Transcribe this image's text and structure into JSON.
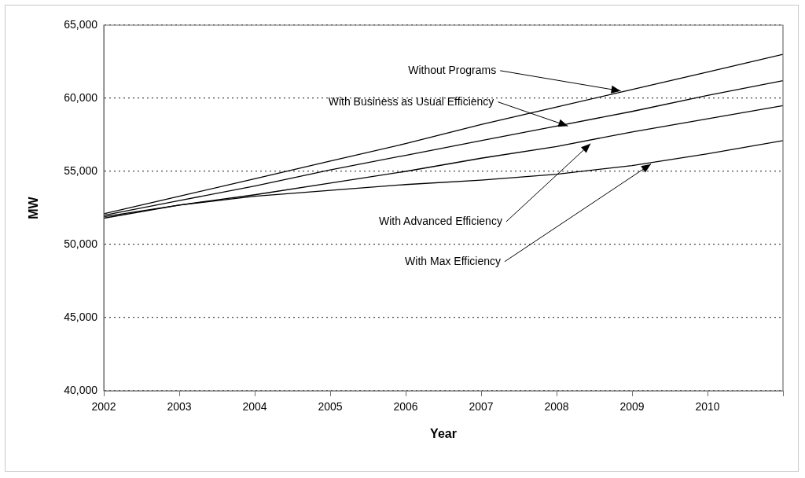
{
  "chart_data": {
    "type": "line",
    "xlabel": "Year",
    "ylabel": "MW",
    "x": [
      2002,
      2003,
      2004,
      2005,
      2006,
      2007,
      2008,
      2009,
      2010,
      2011
    ],
    "series": [
      {
        "color": "#000000",
        "values": [
          52100,
          53300,
          54500,
          55700,
          56900,
          58200,
          59400,
          60600,
          61800,
          63000
        ]
      },
      {
        "color": "#000000",
        "values": [
          52000,
          53000,
          54000,
          55100,
          56100,
          57100,
          58100,
          59100,
          60200,
          61200
        ]
      },
      {
        "color": "#000000",
        "values": [
          51900,
          52700,
          53400,
          54200,
          55000,
          55900,
          56700,
          57700,
          58600,
          59500
        ]
      },
      {
        "color": "#000000",
        "values": [
          51800,
          52700,
          53300,
          53700,
          54100,
          54400,
          54800,
          55400,
          56200,
          57100
        ]
      }
    ],
    "xlim": [
      2002,
      2011
    ],
    "xticks": [
      2002,
      2003,
      2004,
      2005,
      2006,
      2007,
      2008,
      2009,
      2010,
      {
        "value": 2011,
        "label": null
      }
    ],
    "ylim": [
      40000,
      65000
    ],
    "yticks": [
      {
        "value": 40000,
        "label": "40,000"
      },
      {
        "value": 45000,
        "label": "45,000"
      },
      {
        "value": 50000,
        "label": "50,000"
      },
      {
        "value": 55000,
        "label": "55,000"
      },
      {
        "value": 60000,
        "label": "60,000"
      },
      {
        "value": 65000,
        "label": "65,000"
      }
    ],
    "grid": "y",
    "legend": false,
    "marker": "none",
    "line_style": "solid",
    "annotations": [
      {
        "text": "Without Programs",
        "x": 2008.85,
        "y": 60500
      },
      {
        "text": "With Business as Usual Efficiency",
        "x": 2008.15,
        "y": 58100
      },
      {
        "text": "With Advanced Efficiency",
        "x": 2008.45,
        "y": 56900
      },
      {
        "text": "With Max Efficiency",
        "x": 2009.25,
        "y": 55500
      }
    ]
  }
}
